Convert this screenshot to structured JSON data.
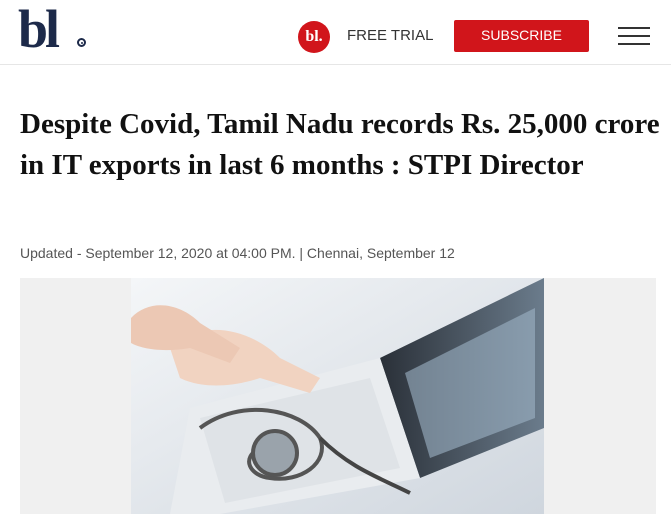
{
  "header": {
    "logo": "bl",
    "badge": "bl.",
    "free_trial": "FREE TRIAL",
    "subscribe": "SUBSCRIBE"
  },
  "article": {
    "title": "Despite Covid, Tamil Nadu records Rs. 25,000 crore in IT exports in last 6 months : STPI Director",
    "meta": "Updated - September 12, 2020 at 04:00 PM. | Chennai, September 12"
  }
}
